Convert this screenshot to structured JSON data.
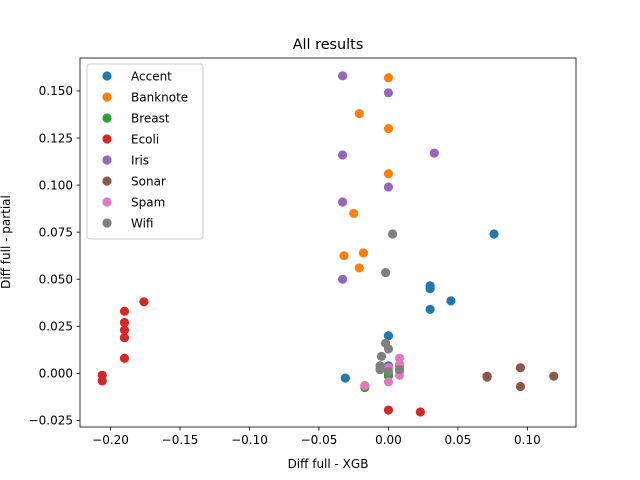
{
  "chart_data": {
    "type": "scatter",
    "title": "All results",
    "xlabel": "Diff full - XGB",
    "ylabel": "Diff full - partial",
    "xlim": [
      -0.222,
      0.135
    ],
    "ylim": [
      -0.0285,
      0.1675
    ],
    "xticks": [
      {
        "v": -0.2,
        "label": "−0.20"
      },
      {
        "v": -0.15,
        "label": "−0.15"
      },
      {
        "v": -0.1,
        "label": "−0.10"
      },
      {
        "v": -0.05,
        "label": "−0.05"
      },
      {
        "v": 0.0,
        "label": "0.00"
      },
      {
        "v": 0.05,
        "label": "0.05"
      },
      {
        "v": 0.1,
        "label": "0.10"
      }
    ],
    "yticks": [
      {
        "v": -0.025,
        "label": "−0.025"
      },
      {
        "v": 0.0,
        "label": "0.000"
      },
      {
        "v": 0.025,
        "label": "0.025"
      },
      {
        "v": 0.05,
        "label": "0.050"
      },
      {
        "v": 0.075,
        "label": "0.075"
      },
      {
        "v": 0.1,
        "label": "0.100"
      },
      {
        "v": 0.125,
        "label": "0.125"
      },
      {
        "v": 0.15,
        "label": "0.150"
      }
    ],
    "grid": false,
    "legend_position": "top-left",
    "series": [
      {
        "name": "Accent",
        "color": "#1f77b4",
        "points": [
          [
            0.076,
            0.074
          ],
          [
            0.045,
            0.0385
          ],
          [
            0.03,
            0.0465
          ],
          [
            0.03,
            0.045
          ],
          [
            0.03,
            0.034
          ],
          [
            0.0,
            0.02
          ],
          [
            -0.031,
            -0.0025
          ],
          [
            0.0,
            0.004
          ]
        ]
      },
      {
        "name": "Banknote",
        "color": "#ff7f0e",
        "points": [
          [
            0.0,
            0.157
          ],
          [
            -0.021,
            0.138
          ],
          [
            0.0,
            0.13
          ],
          [
            0.0,
            0.106
          ],
          [
            -0.025,
            0.085
          ],
          [
            -0.018,
            0.064
          ],
          [
            -0.032,
            0.0625
          ],
          [
            -0.021,
            0.056
          ]
        ]
      },
      {
        "name": "Breast",
        "color": "#2ca02c",
        "points": [
          [
            -0.017,
            -0.0075
          ],
          [
            0.0,
            0.0
          ],
          [
            0.0,
            -0.0015
          ],
          [
            0.0,
            0.003
          ],
          [
            0.008,
            0.004
          ]
        ]
      },
      {
        "name": "Ecoli",
        "color": "#d62728",
        "points": [
          [
            -0.176,
            0.038
          ],
          [
            -0.19,
            0.033
          ],
          [
            -0.19,
            0.027
          ],
          [
            -0.19,
            0.023
          ],
          [
            -0.19,
            0.019
          ],
          [
            -0.19,
            0.008
          ],
          [
            -0.206,
            -0.001
          ],
          [
            -0.206,
            -0.004
          ],
          [
            0.0,
            -0.0195
          ],
          [
            0.023,
            -0.0205
          ]
        ]
      },
      {
        "name": "Iris",
        "color": "#9467bd",
        "points": [
          [
            -0.033,
            0.158
          ],
          [
            0.0,
            0.149
          ],
          [
            -0.033,
            0.116
          ],
          [
            0.033,
            0.117
          ],
          [
            0.0,
            0.099
          ],
          [
            -0.033,
            0.091
          ],
          [
            -0.033,
            0.05
          ],
          [
            0.0,
            0.003
          ]
        ]
      },
      {
        "name": "Sonar",
        "color": "#8c564b",
        "points": [
          [
            0.095,
            0.003
          ],
          [
            0.071,
            -0.0015
          ],
          [
            0.071,
            -0.002
          ],
          [
            0.119,
            -0.0015
          ],
          [
            0.095,
            -0.007
          ]
        ]
      },
      {
        "name": "Spam",
        "color": "#e377c2",
        "points": [
          [
            0.008,
            0.008
          ],
          [
            0.008,
            0.005
          ],
          [
            0.0,
            0.003
          ],
          [
            0.008,
            0.001
          ],
          [
            0.008,
            -0.001
          ],
          [
            0.0,
            -0.0045
          ],
          [
            -0.017,
            -0.0065
          ]
        ]
      },
      {
        "name": "Wifi",
        "color": "#7f7f7f",
        "points": [
          [
            0.003,
            0.074
          ],
          [
            -0.002,
            0.0535
          ],
          [
            -0.002,
            0.016
          ],
          [
            0.0,
            0.013
          ],
          [
            -0.005,
            0.009
          ],
          [
            -0.006,
            0.004
          ],
          [
            -0.006,
            0.002
          ],
          [
            0.0,
            0.001
          ],
          [
            0.008,
            0.002
          ]
        ]
      }
    ]
  }
}
